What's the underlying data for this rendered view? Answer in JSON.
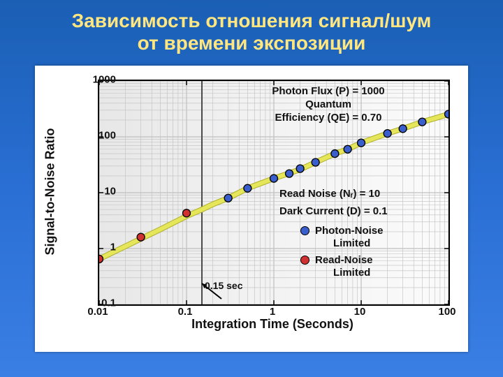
{
  "slide": {
    "title_line1": "Зависимость отношения сигнал/шум",
    "title_line2": "от времени экспозиции",
    "title_color": "#ffe680",
    "background_top": "#1a5fb4",
    "background_bottom": "#3a7fe4"
  },
  "chart": {
    "type": "line+scatter (log-log)",
    "xlabel": "Integration Time (Seconds)",
    "ylabel": "Signal-to-Noise Ratio",
    "label_fontsize": 18,
    "tick_fontsize": 15,
    "x_log": true,
    "y_log": true,
    "xlim": [
      0.01,
      100
    ],
    "ylim": [
      0.1,
      1000
    ],
    "x_ticks": [
      0.01,
      0.1,
      1,
      10,
      100
    ],
    "x_tick_labels": [
      "0.01",
      "0.1",
      "1",
      "10",
      "100"
    ],
    "y_ticks": [
      0.1,
      1,
      10,
      100,
      1000
    ],
    "y_tick_labels": [
      "0.1",
      "1",
      "10",
      "100",
      "1000"
    ],
    "grid_color": "#bfbfbf",
    "border_color": "#000000",
    "plot_bg_left": "#e7e7e7",
    "plot_bg_right": "#fbfbfb",
    "curve": {
      "color": "#e6e65a",
      "stroke_width": 6,
      "outline": "#b0b030",
      "points": [
        [
          0.01,
          0.65
        ],
        [
          0.02,
          1.1
        ],
        [
          0.05,
          2.2
        ],
        [
          0.1,
          3.8
        ],
        [
          0.15,
          5.0
        ],
        [
          0.2,
          6.2
        ],
        [
          0.3,
          8.0
        ],
        [
          0.5,
          12.0
        ],
        [
          1.0,
          18.0
        ],
        [
          2.0,
          26.0
        ],
        [
          3.0,
          35.0
        ],
        [
          5.0,
          50.0
        ],
        [
          7.0,
          60.0
        ],
        [
          10.0,
          78.0
        ],
        [
          20.0,
          115.0
        ],
        [
          30.0,
          140.0
        ],
        [
          50.0,
          185.0
        ],
        [
          70.0,
          215.0
        ],
        [
          100.0,
          255.0
        ]
      ]
    },
    "series": [
      {
        "name": "Read-Noise Limited",
        "color": "#d03030",
        "marker": "circle",
        "marker_size": 11,
        "marker_border": "#000000",
        "points": [
          [
            0.01,
            0.65
          ],
          [
            0.03,
            1.6
          ],
          [
            0.1,
            4.3
          ]
        ]
      },
      {
        "name": "Photon-Noise Limited",
        "color": "#3a5fcd",
        "marker": "circle",
        "marker_size": 11,
        "marker_border": "#000000",
        "points": [
          [
            0.3,
            8.0
          ],
          [
            0.5,
            12.0
          ],
          [
            1.0,
            18.0
          ],
          [
            1.5,
            22.0
          ],
          [
            2.0,
            27.0
          ],
          [
            3.0,
            35.0
          ],
          [
            5.0,
            50.0
          ],
          [
            7.0,
            60.0
          ],
          [
            10.0,
            78.0
          ],
          [
            20.0,
            115.0
          ],
          [
            30.0,
            140.0
          ],
          [
            50.0,
            185.0
          ],
          [
            100.0,
            255.0
          ]
        ]
      }
    ],
    "divider": {
      "x": 0.15,
      "color": "#4a4a4a",
      "width": 2,
      "label": "0.15 sec"
    },
    "annotations": {
      "top_line1": "Photon Flux (P) = 1000",
      "top_line2": "Quantum",
      "top_line3": "Efficiency (QE) = 0.70",
      "mid_line1": "Read Noise (Nᵣ) = 10",
      "mid_line2": "Dark Current (D) = 0.1",
      "anno_fontsize": 15
    },
    "legend": {
      "entries": [
        {
          "label": "Photon-Noise Limited",
          "color": "#3a5fcd",
          "text1": "Photon-Noise",
          "text2": "Limited"
        },
        {
          "label": "Read-Noise Limited",
          "color": "#d03030",
          "text1": "Read-Noise",
          "text2": "Limited"
        }
      ]
    }
  }
}
